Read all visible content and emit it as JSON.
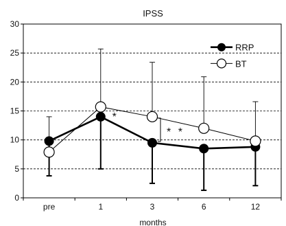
{
  "chart_data": {
    "type": "line",
    "title": "IPSS",
    "xlabel": "months",
    "ylabel": "",
    "categories": [
      "pre",
      "1",
      "3",
      "6",
      "12"
    ],
    "ylim": [
      0,
      30
    ],
    "yticks": [
      0,
      5,
      10,
      15,
      20,
      25,
      30
    ],
    "grid": "horizontal dashed",
    "legend_position": "top-right",
    "series": [
      {
        "name": "RRP",
        "marker": "filled-circle",
        "color": "#000000",
        "values": [
          9.8,
          14.0,
          9.5,
          8.5,
          8.8
        ],
        "error_minus": [
          6.0,
          9.0,
          7.0,
          7.2,
          6.7
        ],
        "error_plus": [
          0,
          0,
          0,
          0,
          0
        ]
      },
      {
        "name": "BT",
        "marker": "open-circle",
        "color": "#000000",
        "values": [
          7.9,
          15.7,
          14.0,
          12.0,
          9.8
        ],
        "error_minus": [
          0,
          0,
          0,
          0,
          0
        ],
        "error_plus": [
          6.1,
          10.0,
          9.4,
          8.9,
          6.8
        ]
      }
    ],
    "annotations": [
      {
        "text": "*",
        "category": "1"
      },
      {
        "text": "* *",
        "category": "3"
      }
    ]
  }
}
